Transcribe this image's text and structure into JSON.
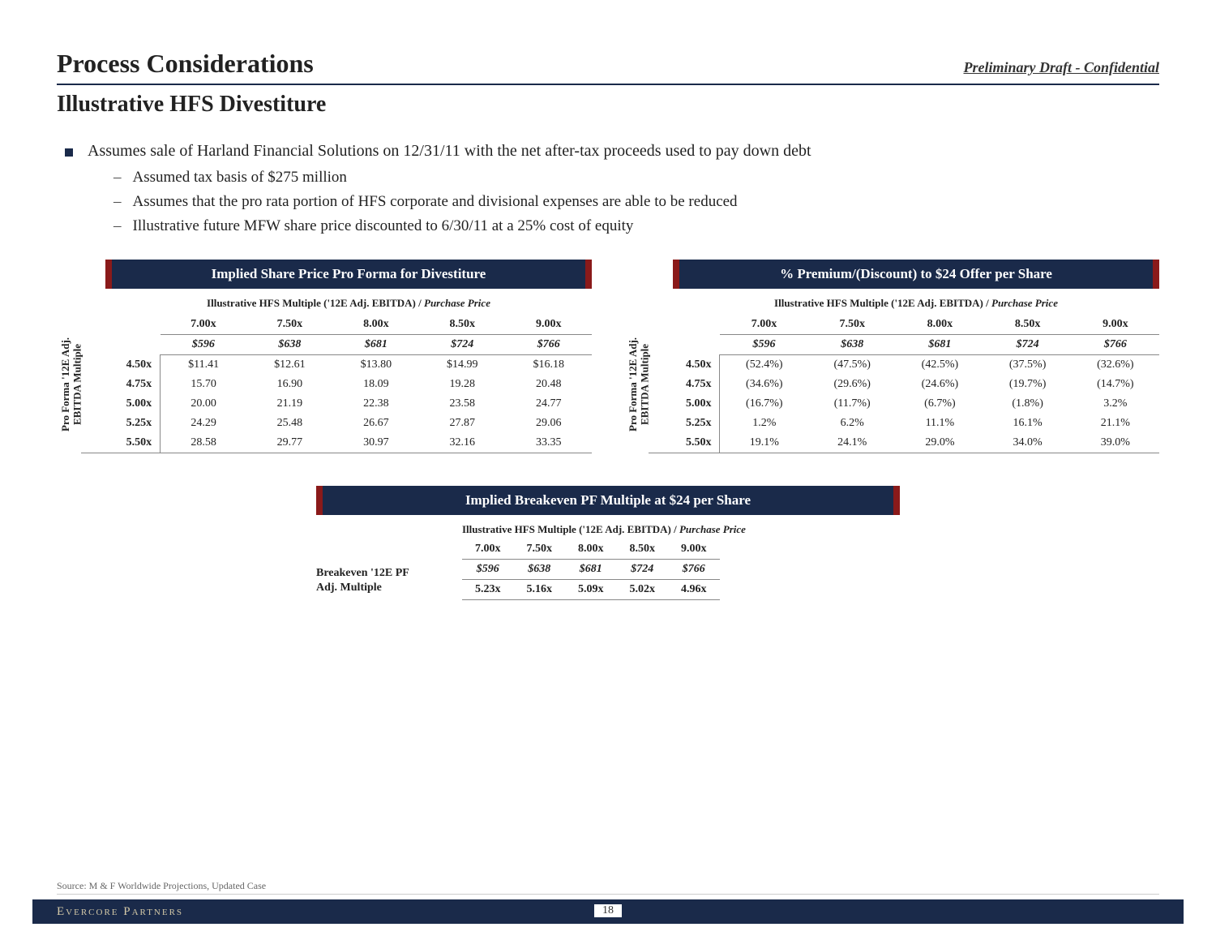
{
  "header": {
    "title": "Process Considerations",
    "right": "Preliminary Draft - Confidential"
  },
  "subtitle": "Illustrative HFS Divestiture",
  "bullets": {
    "main": "Assumes sale of Harland Financial Solutions on 12/31/11 with the net after-tax proceeds used to pay down debt",
    "subs": [
      "Assumed tax basis of $275 million",
      "Assumes that the pro rata portion of HFS corporate and divisional expenses are able to be reduced",
      "Illustrative future MFW share price discounted to 6/30/11 at a 25% cost of equity"
    ]
  },
  "tables": {
    "caption_main": "Illustrative HFS Multiple ('12E Adj. EBITDA) /",
    "caption_ital": " Purchase Price",
    "y_label_line1": "Pro Forma '12E Adj.",
    "y_label_line2": "EBITDA Multiple",
    "col_mults": [
      "7.00x",
      "7.50x",
      "8.00x",
      "8.50x",
      "9.00x"
    ],
    "col_prices": [
      "$596",
      "$638",
      "$681",
      "$724",
      "$766"
    ],
    "row_mults": [
      "4.50x",
      "4.75x",
      "5.00x",
      "5.25x",
      "5.50x"
    ],
    "left": {
      "banner": "Implied Share Price Pro Forma for Divestiture",
      "rows": [
        [
          "$11.41",
          "$12.61",
          "$13.80",
          "$14.99",
          "$16.18"
        ],
        [
          "15.70",
          "16.90",
          "18.09",
          "19.28",
          "20.48"
        ],
        [
          "20.00",
          "21.19",
          "22.38",
          "23.58",
          "24.77"
        ],
        [
          "24.29",
          "25.48",
          "26.67",
          "27.87",
          "29.06"
        ],
        [
          "28.58",
          "29.77",
          "30.97",
          "32.16",
          "33.35"
        ]
      ]
    },
    "right": {
      "banner": "% Premium/(Discount) to $24 Offer per Share",
      "rows": [
        [
          "(52.4%)",
          "(47.5%)",
          "(42.5%)",
          "(37.5%)",
          "(32.6%)"
        ],
        [
          "(34.6%)",
          "(29.6%)",
          "(24.6%)",
          "(19.7%)",
          "(14.7%)"
        ],
        [
          "(16.7%)",
          "(11.7%)",
          "(6.7%)",
          "(1.8%)",
          "3.2%"
        ],
        [
          "1.2%",
          "6.2%",
          "11.1%",
          "16.1%",
          "21.1%"
        ],
        [
          "19.1%",
          "24.1%",
          "29.0%",
          "34.0%",
          "39.0%"
        ]
      ]
    }
  },
  "breakeven": {
    "banner": "Implied Breakeven PF Multiple at $24 per Share",
    "left_line1": "Breakeven '12E PF",
    "left_line2": "Adj. Multiple",
    "row": [
      "5.23x",
      "5.16x",
      "5.09x",
      "5.02x",
      "4.96x"
    ]
  },
  "source": "Source: M & F Worldwide Projections, Updated Case",
  "footer": {
    "brand": "Evercore Partners",
    "page": "18"
  }
}
